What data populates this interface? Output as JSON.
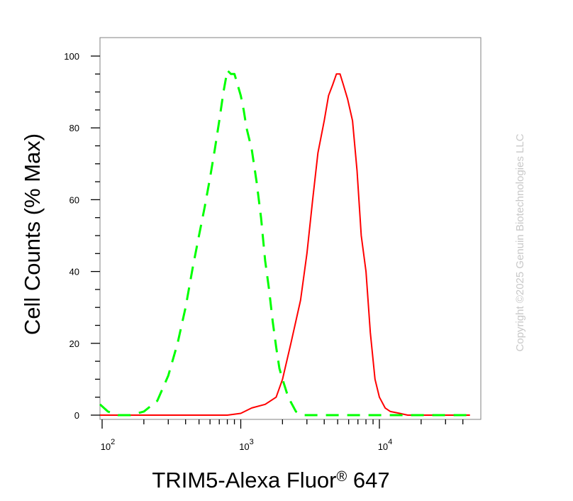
{
  "chart_data": {
    "type": "line",
    "xlabel": "TRIM5-Alexa Fluor",
    "xlabel_superscript": "®",
    "xlabel_suffix": " 647",
    "ylabel": "Cell Counts (% Max)",
    "x_scale": "log",
    "xlim": [
      95,
      45000
    ],
    "ylim": [
      -2,
      105
    ],
    "x_ticks": [
      {
        "value": 100,
        "base": "10",
        "exp": "2"
      },
      {
        "value": 1000,
        "base": "10",
        "exp": "3"
      },
      {
        "value": 10000,
        "base": "10",
        "exp": "4"
      }
    ],
    "y_ticks": [
      "0",
      "20",
      "40",
      "60",
      "80",
      "100"
    ],
    "watermark": "Copyright ©2025 Genuin Biotechnologies LLC",
    "series": [
      {
        "color": "#ff0000",
        "style": "solid",
        "x": [
          95,
          500,
          800,
          1000,
          1200,
          1500,
          1800,
          2000,
          2300,
          2700,
          3000,
          3300,
          3600,
          4000,
          4300,
          4600,
          4900,
          5200,
          5500,
          5900,
          6400,
          6900,
          7400,
          8000,
          8600,
          9300,
          10000,
          11000,
          12000,
          14000,
          16000,
          19000,
          25000,
          45000
        ],
        "y": [
          0,
          0,
          0,
          0.5,
          2,
          3,
          5,
          10,
          20,
          32,
          45,
          60,
          73,
          82,
          89,
          92,
          95,
          95,
          92,
          88,
          82,
          68,
          50,
          40,
          23,
          10,
          5,
          2,
          1,
          0.5,
          0,
          0,
          0,
          0
        ]
      },
      {
        "color": "#00ff00",
        "style": "dashed",
        "x": [
          95,
          110,
          130,
          160,
          200,
          250,
          300,
          350,
          400,
          450,
          500,
          550,
          600,
          650,
          700,
          750,
          800,
          850,
          900,
          950,
          1000,
          1050,
          1100,
          1200,
          1300,
          1400,
          1500,
          1600,
          1700,
          1800,
          1900,
          2000,
          2200,
          2500,
          2800,
          3200,
          3700,
          5000,
          10000,
          45000
        ],
        "y": [
          3,
          1,
          0,
          0,
          1,
          4,
          11,
          20,
          30,
          41,
          50,
          58,
          66,
          74,
          82,
          90,
          96,
          95,
          95,
          92,
          89,
          85,
          80,
          74,
          65,
          55,
          43,
          35,
          26,
          19,
          13,
          10,
          5,
          1,
          0,
          0,
          0,
          0,
          0,
          0
        ]
      }
    ]
  }
}
